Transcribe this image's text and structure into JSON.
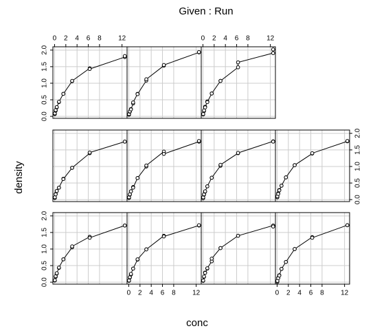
{
  "chart_data": {
    "type": "coplot",
    "title": "Given : Run",
    "xlabel": "conc",
    "ylabel": "density",
    "color": "#000000",
    "grid": true,
    "x": [
      0.04882812,
      0.04882812,
      0.1953125,
      0.1953125,
      0.390625,
      0.390625,
      0.78125,
      0.78125,
      1.5625,
      1.5625,
      3.125,
      3.125,
      6.25,
      6.25,
      12.5,
      12.5
    ],
    "xlim": [
      -0.3,
      12.9
    ],
    "ylim": [
      -0.06,
      2.1
    ],
    "xticks": [
      0,
      2,
      4,
      6,
      8,
      12
    ],
    "yticks": [
      {
        "value": 0,
        "label": "0.0"
      },
      {
        "value": 0.5,
        "label": "0.5"
      },
      {
        "value": 1,
        "label": "1.0"
      },
      {
        "value": 1.5,
        "label": "1.5"
      },
      {
        "value": 2,
        "label": "2.0"
      }
    ],
    "series": [
      {
        "values": [
          0.05,
          0.06,
          0.16,
          0.18,
          0.26,
          0.27,
          0.43,
          0.44,
          0.69,
          0.69,
          1.05,
          1.08,
          1.37,
          1.34,
          1.71,
          1.71
        ]
      },
      {
        "values": [
          0.04,
          0.05,
          0.14,
          0.15,
          0.23,
          0.25,
          0.41,
          0.41,
          0.68,
          0.69,
          0.99,
          0.99,
          1.4,
          1.38,
          1.71,
          1.72
        ]
      },
      {
        "values": [
          0.04,
          0.05,
          0.16,
          0.17,
          0.29,
          0.28,
          0.41,
          0.42,
          0.63,
          0.71,
          1.03,
          1.03,
          1.4,
          1.4,
          1.71,
          1.68
        ]
      },
      {
        "values": [
          0.01,
          0.04,
          0.13,
          0.12,
          0.21,
          0.2,
          0.4,
          0.4,
          0.61,
          0.61,
          1.0,
          1.0,
          1.36,
          1.34,
          1.72,
          1.72
        ]
      },
      {
        "values": [
          0.05,
          0.07,
          0.17,
          0.16,
          0.26,
          0.26,
          0.36,
          0.36,
          0.63,
          0.62,
          0.96,
          0.96,
          1.4,
          1.42,
          1.75,
          1.75
        ]
      },
      {
        "values": [
          0.05,
          0.07,
          0.15,
          0.16,
          0.25,
          0.25,
          0.38,
          0.36,
          0.65,
          0.65,
          1.0,
          1.03,
          1.45,
          1.38,
          1.75,
          1.77
        ]
      },
      {
        "values": [
          0.04,
          0.07,
          0.15,
          0.16,
          0.24,
          0.25,
          0.4,
          0.4,
          0.66,
          0.66,
          1.02,
          1.05,
          1.4,
          1.41,
          1.76,
          1.75
        ]
      },
      {
        "values": [
          0.07,
          0.1,
          0.19,
          0.17,
          0.29,
          0.28,
          0.42,
          0.42,
          0.67,
          0.67,
          1.04,
          1.04,
          1.39,
          1.4,
          1.76,
          1.77
        ]
      },
      {
        "values": [
          0.07,
          0.09,
          0.17,
          0.19,
          0.27,
          0.28,
          0.43,
          0.44,
          0.68,
          0.68,
          1.06,
          1.07,
          1.45,
          1.43,
          1.79,
          1.82
        ]
      },
      {
        "values": [
          0.05,
          0.07,
          0.14,
          0.15,
          0.22,
          0.21,
          0.39,
          0.42,
          0.68,
          0.67,
          1.08,
          1.12,
          1.53,
          1.55,
          1.93,
          1.94
        ]
      },
      {
        "values": [
          0.06,
          0.07,
          0.16,
          0.18,
          0.29,
          0.27,
          0.45,
          0.43,
          0.69,
          0.69,
          1.07,
          1.07,
          1.48,
          1.63,
          1.91,
          2.02
        ]
      }
    ]
  }
}
